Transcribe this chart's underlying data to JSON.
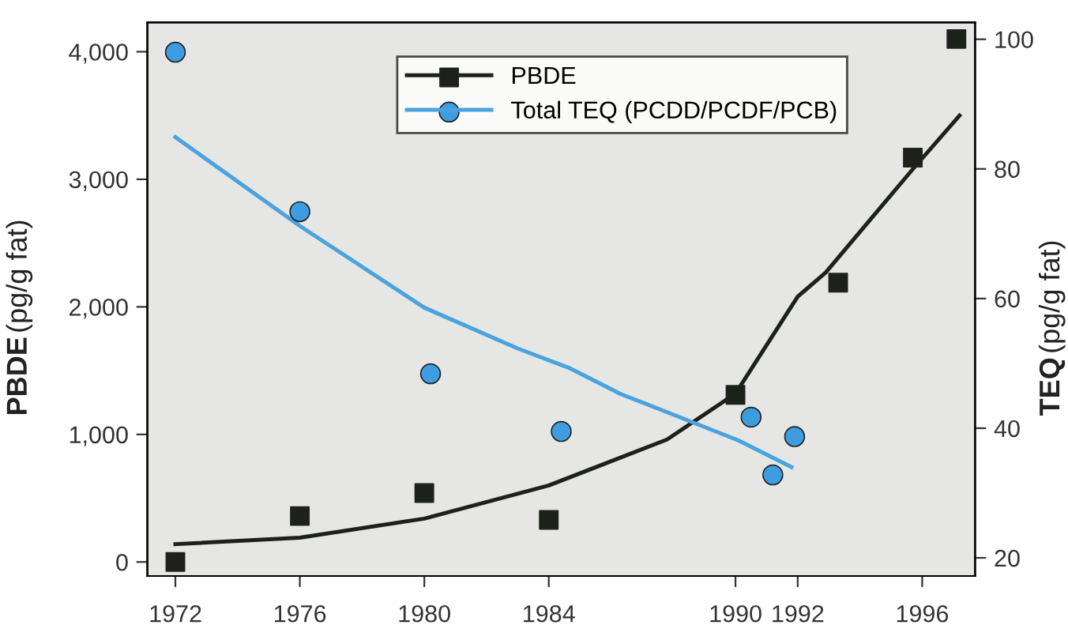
{
  "chart_data": {
    "type": "scatter",
    "ylabel": "PBDE (pg/g fat)",
    "y2label": "TEQ (pg/g fat)",
    "xlim": [
      1971.1,
      1997.7
    ],
    "xticks": [
      1972,
      1976,
      1980,
      1984,
      1990,
      1992,
      1996
    ],
    "ylim": [
      -110,
      4230
    ],
    "yticks": [
      0,
      {
        "value": 1000,
        "label": "1,000"
      },
      {
        "value": 2000,
        "label": "2,000"
      },
      {
        "value": 3000,
        "label": "3,000"
      },
      {
        "value": 4000,
        "label": "4,000"
      }
    ],
    "y2lim": [
      17.2,
      102.6
    ],
    "y2ticks": [
      20,
      40,
      60,
      80,
      100
    ],
    "legend": "top right",
    "series": [
      {
        "name": "PBDE",
        "marker": "square",
        "color": "#1c2119",
        "x": [
          1972,
          1976,
          1980,
          1984,
          1990,
          1993.3,
          1995.7,
          1997.1
        ],
        "values": [
          0,
          360,
          540,
          330,
          1310,
          2190,
          3170,
          4100
        ]
      },
      {
        "type": "line",
        "marker": "none",
        "line_style": "solid",
        "color": "#1c2119",
        "x": [
          1972,
          1976,
          1980,
          1984,
          1987.8,
          1990,
          1992,
          1992.9,
          1995.7,
          1997.2
        ],
        "values": [
          140,
          190,
          340,
          600,
          960,
          1320,
          2080,
          2270,
          3080,
          3500
        ]
      },
      {
        "name": "Total TEQ (PCDD/PCDF/PCB)",
        "marker": "circle",
        "axis": "y2",
        "color": "#3d9de0",
        "x": [
          1972,
          1976,
          1980.2,
          1984.4,
          1990.5,
          1991.2,
          1991.9
        ],
        "values": [
          98.0,
          73.4,
          48.4,
          39.5,
          41.7,
          32.8,
          38.7
        ]
      },
      {
        "type": "line",
        "marker": "none",
        "line_style": "solid",
        "axis": "y2",
        "color": "#4aa3df",
        "x": [
          1972,
          1976,
          1980,
          1983,
          1984.7,
          1986.3,
          1988,
          1990.1,
          1991.8
        ],
        "values": [
          84.9,
          71.2,
          58.6,
          52.3,
          49.2,
          45.3,
          42.1,
          38.1,
          34.0
        ]
      }
    ]
  }
}
